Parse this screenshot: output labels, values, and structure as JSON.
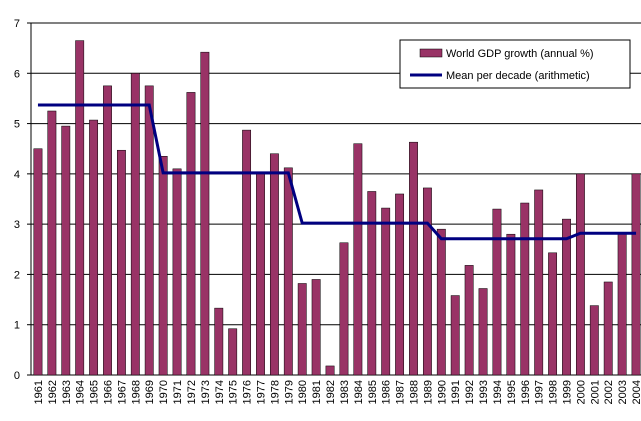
{
  "chart_data": {
    "type": "bar",
    "categories": [
      "1961",
      "1962",
      "1963",
      "1964",
      "1965",
      "1966",
      "1967",
      "1968",
      "1969",
      "1970",
      "1971",
      "1972",
      "1973",
      "1974",
      "1975",
      "1976",
      "1977",
      "1978",
      "1979",
      "1980",
      "1981",
      "1982",
      "1983",
      "1984",
      "1985",
      "1986",
      "1987",
      "1988",
      "1989",
      "1990",
      "1991",
      "1992",
      "1993",
      "1994",
      "1995",
      "1996",
      "1997",
      "1998",
      "1999",
      "2000",
      "2001",
      "2002",
      "2003",
      "2004"
    ],
    "series": [
      {
        "name": "World GDP growth (annual %)",
        "type": "bar",
        "color": "#993366",
        "values": [
          4.5,
          5.25,
          4.95,
          6.65,
          5.07,
          5.75,
          4.47,
          6.0,
          5.75,
          4.35,
          4.1,
          5.62,
          6.42,
          1.33,
          0.92,
          4.87,
          4.0,
          4.4,
          4.12,
          1.82,
          1.9,
          0.18,
          2.63,
          4.6,
          3.65,
          3.32,
          3.6,
          4.63,
          3.72,
          2.9,
          1.58,
          2.18,
          1.72,
          3.3,
          2.8,
          3.42,
          3.68,
          2.43,
          3.1,
          4.0,
          1.38,
          1.85,
          2.8,
          4.0
        ]
      },
      {
        "name": "Mean per decade (arithmetic)",
        "type": "line",
        "color": "#000080",
        "values": [
          5.37,
          5.37,
          5.37,
          5.37,
          5.37,
          5.37,
          5.37,
          5.37,
          5.37,
          4.02,
          4.02,
          4.02,
          4.02,
          4.02,
          4.02,
          4.02,
          4.02,
          4.02,
          4.02,
          3.02,
          3.02,
          3.02,
          3.02,
          3.02,
          3.02,
          3.02,
          3.02,
          3.02,
          3.02,
          2.71,
          2.71,
          2.71,
          2.71,
          2.71,
          2.71,
          2.71,
          2.71,
          2.71,
          2.71,
          2.82,
          2.82,
          2.82,
          2.82,
          2.82
        ]
      }
    ],
    "ylim": [
      0,
      7
    ],
    "yticks": [
      0,
      1,
      2,
      3,
      4,
      5,
      6,
      7
    ],
    "grid": true,
    "legend": "top-right"
  }
}
